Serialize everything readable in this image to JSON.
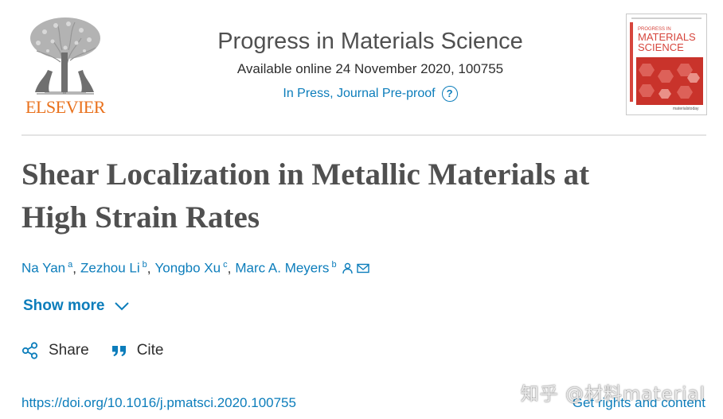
{
  "publisher": {
    "name": "ELSEVIER",
    "brand_color": "#e9711c"
  },
  "journal": {
    "title": "Progress in Materials Science",
    "availability": "Available online 24 November 2020, 100755",
    "status_link": "In Press, Journal Pre-proof",
    "help_glyph": "?",
    "link_color": "#0c7dbb"
  },
  "cover": {
    "line1": "PROGRESS IN",
    "line2": "MATERIALS",
    "line3": "SCIENCE",
    "footer": "materialstoday",
    "accent_color": "#d6453c"
  },
  "article": {
    "title_line1": "Shear Localization in Metallic Materials at",
    "title_line2": "High Strain Rates"
  },
  "authors": [
    {
      "name": "Na Yan",
      "aff": "a"
    },
    {
      "name": "Zezhou Li",
      "aff": "b"
    },
    {
      "name": "Yongbo Xu",
      "aff": "c"
    },
    {
      "name": "Marc A. Meyers",
      "aff": "b"
    }
  ],
  "author_separator": ",",
  "author_icons": [
    "person-icon",
    "envelope-icon"
  ],
  "show_more": {
    "label": "Show more",
    "icon": "chevron-down-icon"
  },
  "actions": {
    "share_label": "Share",
    "share_icon": "share-icon",
    "cite_label": "Cite",
    "cite_icon": "quote-icon"
  },
  "footer": {
    "doi": "https://doi.org/10.1016/j.pmatsci.2020.100755",
    "rights": "Get rights and content"
  },
  "watermark": "知乎 @材料material"
}
